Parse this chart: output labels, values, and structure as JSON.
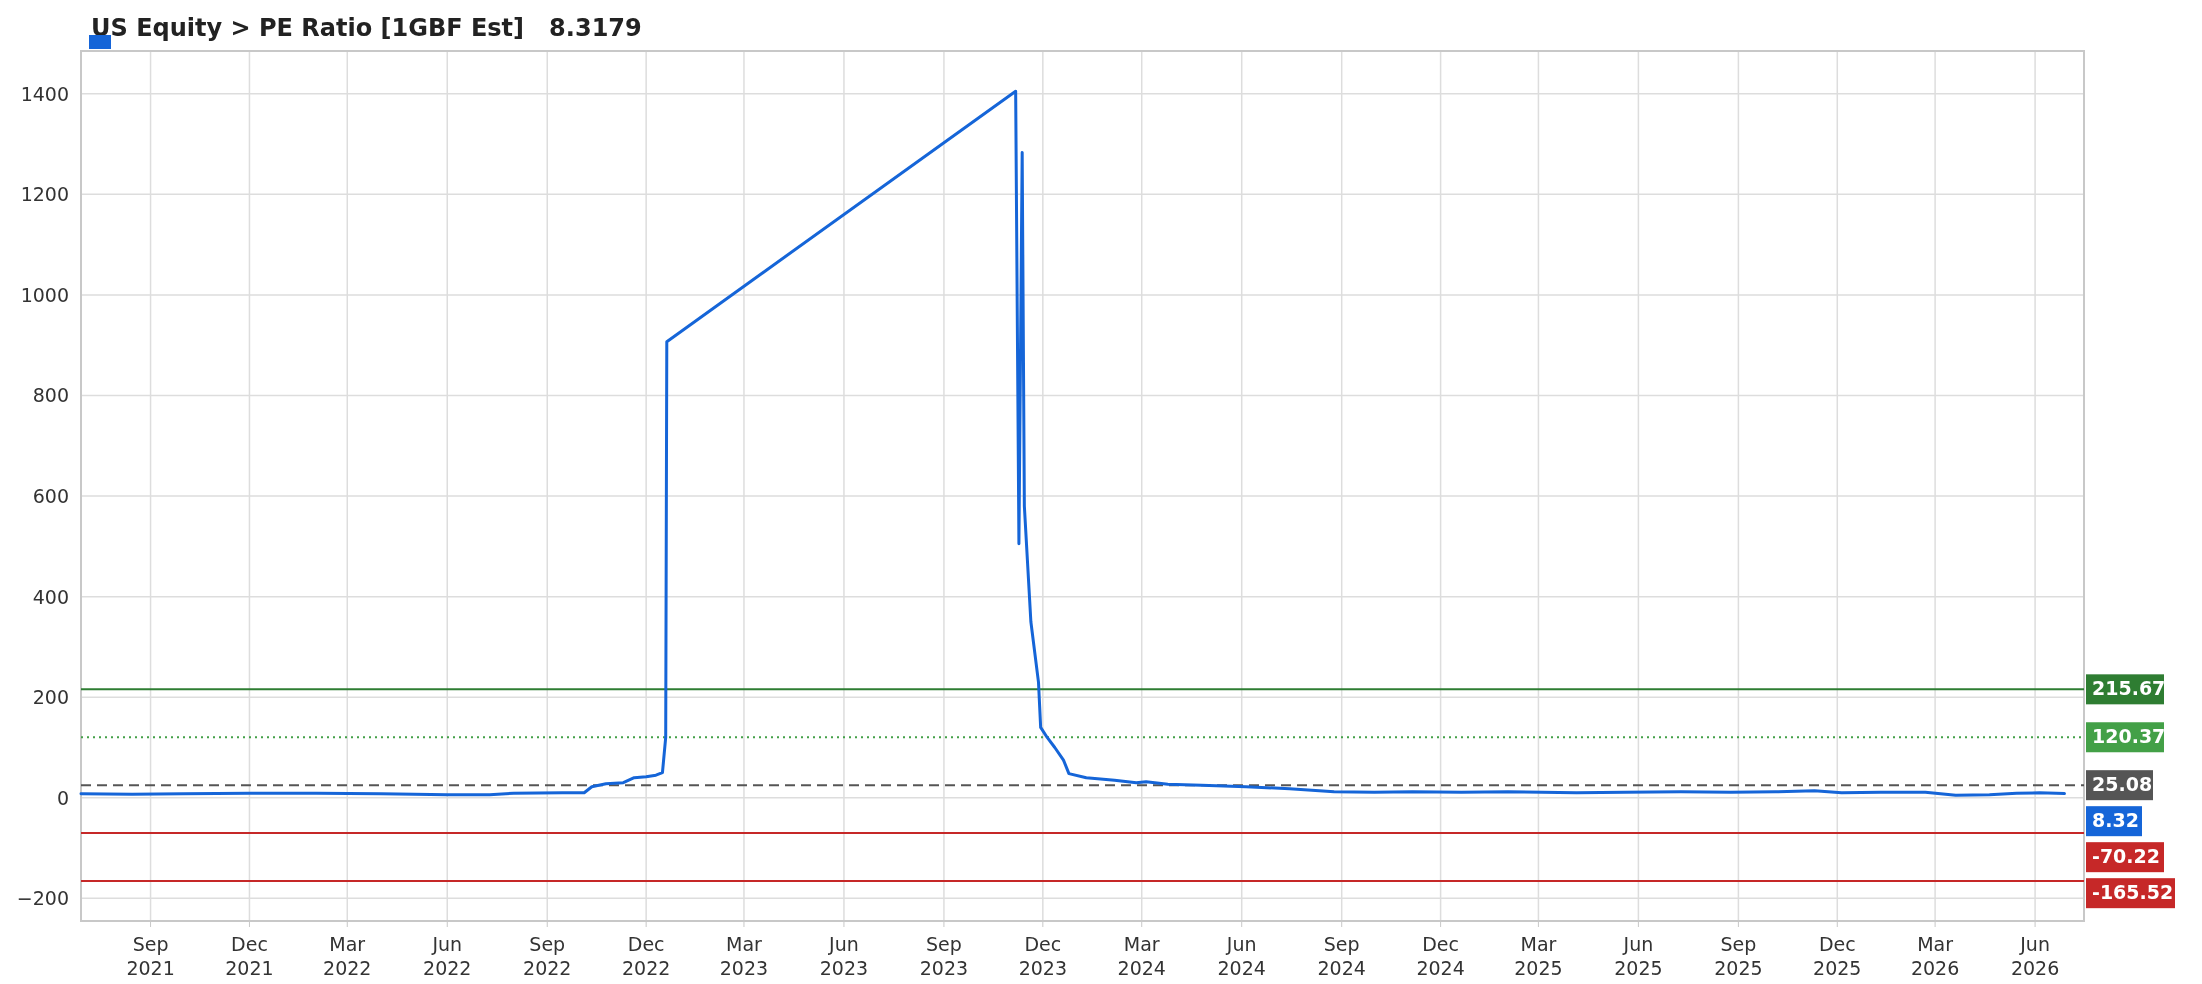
{
  "chart_data": {
    "type": "line",
    "title": "US Equity > PE Ratio [1GBF Est]   8.3179",
    "x": [
      "2021-06-29",
      "2021-08-15",
      "2021-10-01",
      "2021-12-01",
      "2022-02-01",
      "2022-04-01",
      "2022-06-01",
      "2022-07-10",
      "2022-08-01",
      "2022-09-15",
      "2022-10-05",
      "2022-10-12",
      "2022-10-25",
      "2022-11-10",
      "2022-11-20",
      "2022-12-01",
      "2022-12-10",
      "2022-12-16",
      "2022-12-19",
      "2022-12-20",
      "2023-11-06",
      "2023-11-09",
      "2023-11-12",
      "2023-11-14",
      "2023-11-20",
      "2023-11-27",
      "2023-11-29",
      "2023-12-05",
      "2023-12-12",
      "2023-12-20",
      "2023-12-25",
      "2024-01-10",
      "2024-02-05",
      "2024-02-25",
      "2024-03-05",
      "2024-03-25",
      "2024-04-25",
      "2024-06-05",
      "2024-07-15",
      "2024-08-25",
      "2024-10-01",
      "2024-11-05",
      "2024-12-20",
      "2025-02-01",
      "2025-04-05",
      "2025-05-20",
      "2025-07-10",
      "2025-08-25",
      "2025-10-05",
      "2025-11-10",
      "2025-12-05",
      "2026-01-10",
      "2026-02-20",
      "2026-03-20",
      "2026-04-20",
      "2026-05-15",
      "2026-06-05",
      "2026-06-28"
    ],
    "series": [
      {
        "color": "#1565d8",
        "values": [
          8,
          7,
          8,
          9,
          9,
          8,
          6,
          6,
          9,
          10,
          10,
          22,
          28,
          30,
          40,
          42,
          45,
          50,
          120,
          907,
          1405,
          505,
          1283,
          580,
          350,
          230,
          140,
          120,
          100,
          75,
          48,
          40,
          35,
          30,
          32,
          27,
          25,
          22,
          18,
          12,
          11,
          12,
          11,
          12,
          10,
          11,
          12,
          11,
          12,
          14,
          10,
          11,
          11,
          5,
          6,
          9,
          10,
          8.32
        ],
        "value_labels": [
          null,
          null,
          null,
          null,
          null,
          null,
          null,
          null,
          null,
          null,
          null,
          null,
          null,
          null,
          null,
          null,
          null,
          null,
          null,
          null,
          null,
          null,
          null,
          null,
          null,
          null,
          null,
          null,
          null,
          null,
          null,
          null,
          null,
          null,
          null,
          null,
          null,
          null,
          null,
          null,
          null,
          null,
          null,
          null,
          null,
          null,
          null,
          null,
          null,
          null,
          null,
          null,
          null,
          null,
          null,
          null,
          null,
          "8.32"
        ]
      }
    ],
    "xlim": [
      "2021-06-29",
      "2026-07-16"
    ],
    "xticks": [
      {
        "value": "2021-09-01",
        "label": "Sep 2021"
      },
      {
        "value": "2021-12-01",
        "label": "Dec 2021"
      },
      {
        "value": "2022-03-01",
        "label": "Mar 2022"
      },
      {
        "value": "2022-06-01",
        "label": "Jun 2022"
      },
      {
        "value": "2022-09-01",
        "label": "Sep 2022"
      },
      {
        "value": "2022-12-01",
        "label": "Dec 2022"
      },
      {
        "value": "2023-03-01",
        "label": "Mar 2023"
      },
      {
        "value": "2023-06-01",
        "label": "Jun 2023"
      },
      {
        "value": "2023-09-01",
        "label": "Sep 2023"
      },
      {
        "value": "2023-12-01",
        "label": "Dec 2023"
      },
      {
        "value": "2024-03-01",
        "label": "Mar 2024"
      },
      {
        "value": "2024-06-01",
        "label": "Jun 2024"
      },
      {
        "value": "2024-09-01",
        "label": "Sep 2024"
      },
      {
        "value": "2024-12-01",
        "label": "Dec 2024"
      },
      {
        "value": "2025-03-01",
        "label": "Mar 2025"
      },
      {
        "value": "2025-06-01",
        "label": "Jun 2025"
      },
      {
        "value": "2025-09-01",
        "label": "Sep 2025"
      },
      {
        "value": "2025-12-01",
        "label": "Dec 2025"
      },
      {
        "value": "2026-03-01",
        "label": "Mar 2026"
      },
      {
        "value": "2026-06-01",
        "label": "Jun 2026"
      }
    ],
    "ylim": [
      -245,
      1485
    ],
    "yticks": [
      {
        "value": -200,
        "label": "−200"
      },
      0,
      200,
      400,
      600,
      800,
      1000,
      1200,
      1400
    ],
    "grid": true,
    "ref_lines": [
      {
        "axis": "y",
        "value": 215.67,
        "label": "215.67",
        "color": "#2e7d32",
        "line_style": "solid"
      },
      {
        "axis": "y",
        "value": 120.37,
        "label": "120.37",
        "color": "#43a047",
        "line_style": "dotted"
      },
      {
        "axis": "y",
        "value": 25.08,
        "label": "25.08",
        "color": "#555555",
        "line_style": "dashed"
      },
      {
        "axis": "y",
        "value": -70.22,
        "label": "-70.22",
        "color": "#c62828",
        "line_style": "solid"
      },
      {
        "axis": "y",
        "value": -165.52,
        "label": "-165.52",
        "color": "#c62828",
        "line_style": "solid"
      }
    ]
  }
}
